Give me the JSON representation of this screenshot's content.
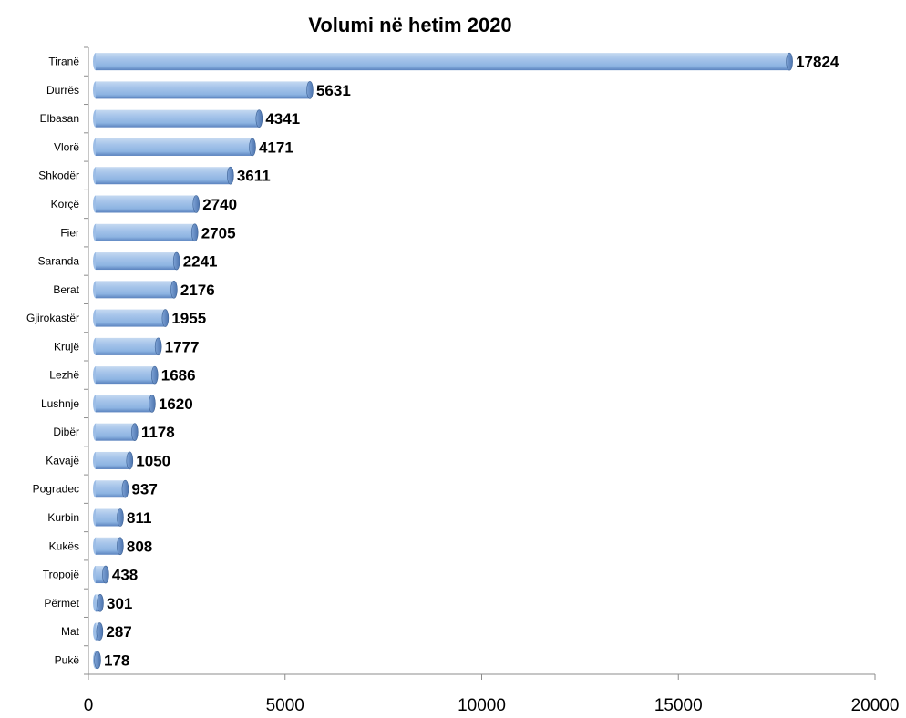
{
  "chart_data": {
    "type": "bar",
    "orientation": "horizontal",
    "title": "Volumi në hetim 2020",
    "xlabel": "",
    "ylabel": "",
    "categories": [
      "Tiranë",
      "Durrës",
      "Elbasan",
      "Vlorë",
      "Shkodër",
      "Korçë",
      "Fier",
      "Saranda",
      "Berat",
      "Gjirokastër",
      "Krujë",
      "Lezhë",
      "Lushnje",
      "Dibër",
      "Kavajë",
      "Pogradec",
      "Kurbin",
      "Kukës",
      "Tropojë",
      "Përmet",
      "Mat",
      "Pukë"
    ],
    "values": [
      17824,
      5631,
      4341,
      4171,
      3611,
      2740,
      2705,
      2241,
      2176,
      1955,
      1777,
      1686,
      1620,
      1178,
      1050,
      937,
      811,
      808,
      438,
      301,
      287,
      178
    ],
    "xlim": [
      0,
      20000
    ],
    "xticks": [
      "0",
      "5000",
      "10000",
      "15000",
      "20000"
    ],
    "grid": false,
    "legend": "none",
    "colors": {
      "bar": "#8DB4E2",
      "bar_dark": "#5A82BE",
      "bar_light": "#C5D9F1"
    }
  }
}
